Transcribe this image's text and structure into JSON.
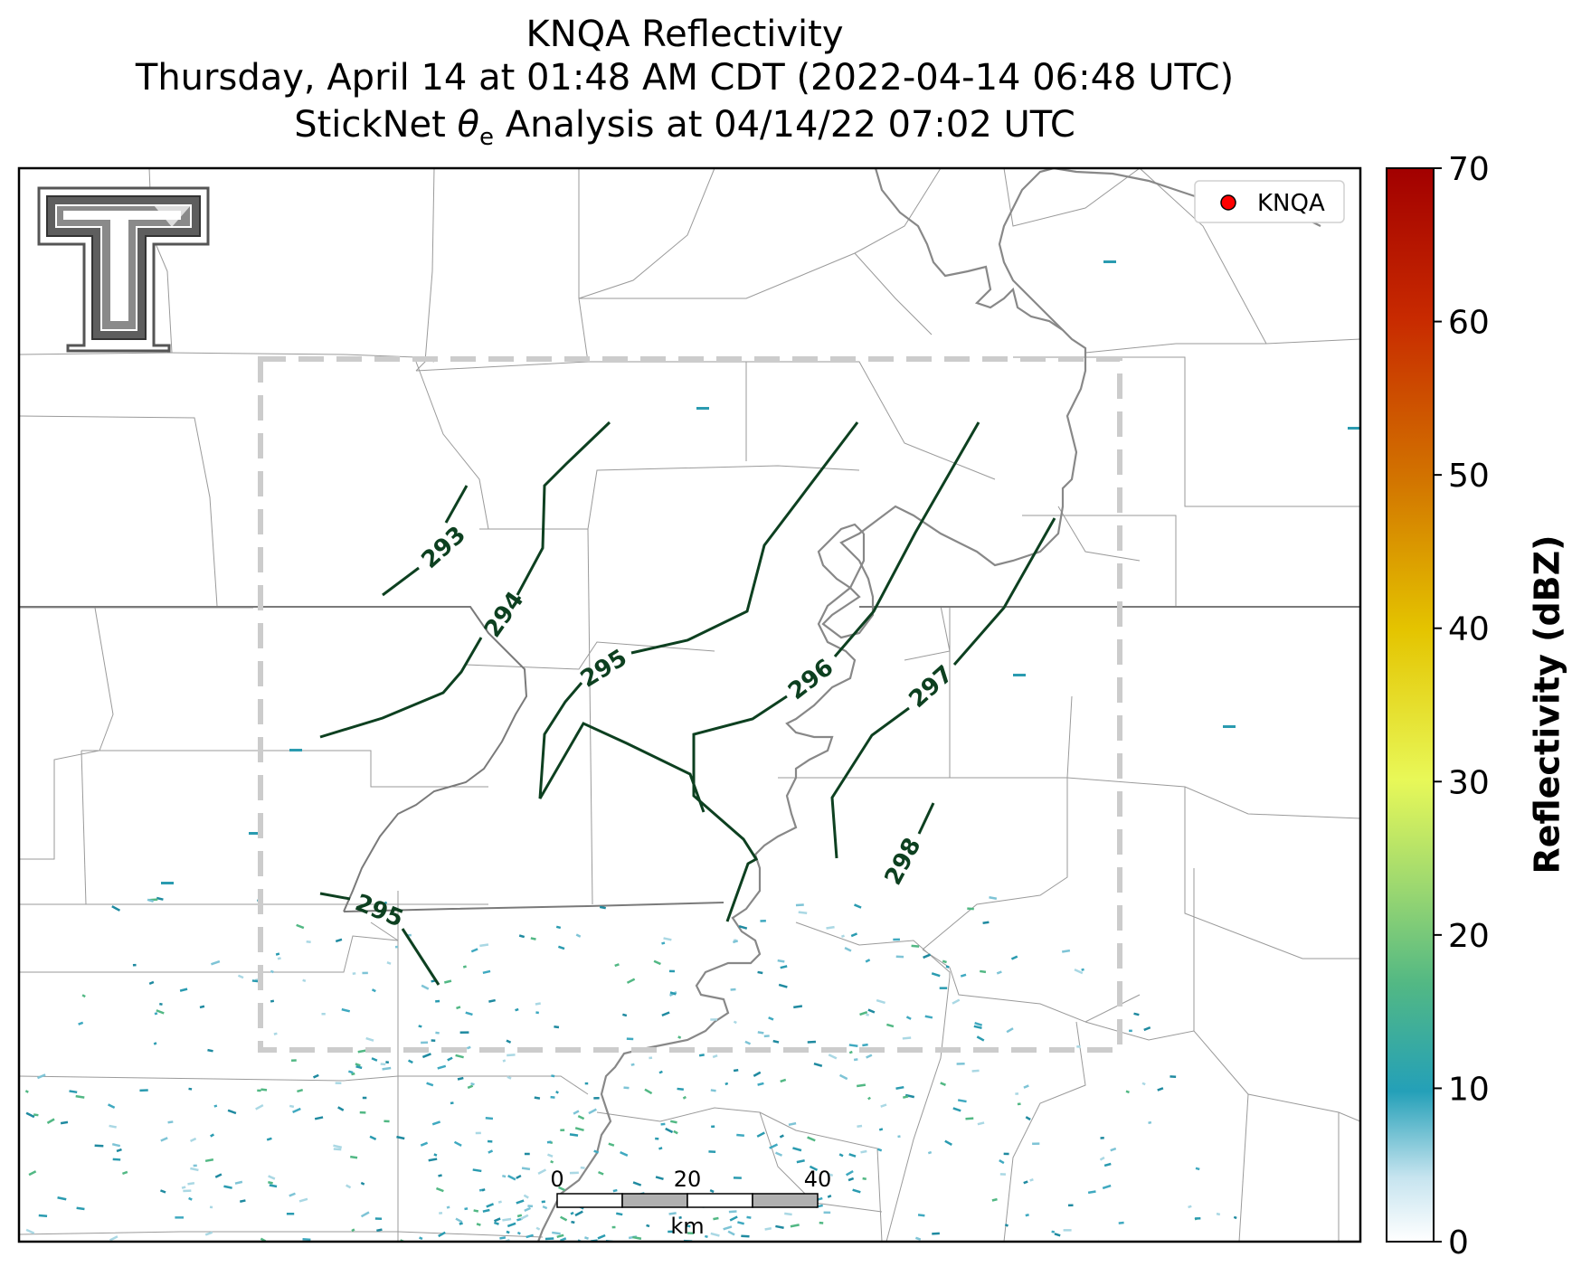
{
  "title": {
    "line1": "KNQA Reflectivity",
    "line2": "Thursday, April 14 at 01:48 AM CDT (2022-04-14 06:48 UTC)",
    "line3_prefix": "StickNet ",
    "line3_symbol": "θ",
    "line3_subscript": "e",
    "line3_suffix": " Analysis at 04/14/22 07:02 UTC"
  },
  "legend": {
    "marker_color": "#ff0000",
    "label": "KNQA"
  },
  "colorbar": {
    "label": "Reflectivity (dBZ)",
    "ticks": [
      "0",
      "10",
      "20",
      "30",
      "40",
      "50",
      "60",
      "70"
    ],
    "min": 0,
    "max": 70
  },
  "contours": [
    {
      "value": 293,
      "label": "293"
    },
    {
      "value": 294,
      "label": "294"
    },
    {
      "value": 295,
      "label": "295"
    },
    {
      "value": 295,
      "label": "295"
    },
    {
      "value": 296,
      "label": "296"
    },
    {
      "value": 297,
      "label": "297"
    },
    {
      "value": 298,
      "label": "298"
    }
  ],
  "scalebar": {
    "ticks": [
      "0",
      "20",
      "40"
    ],
    "unit": "km"
  },
  "colors": {
    "contour": "#0d4020",
    "river": "#888888",
    "border": "#999999",
    "state_line": "#808080",
    "domain_box": "#cccccc",
    "echo": "#2a9bb0"
  },
  "logo": {
    "name": "Texas Tech Double T"
  }
}
